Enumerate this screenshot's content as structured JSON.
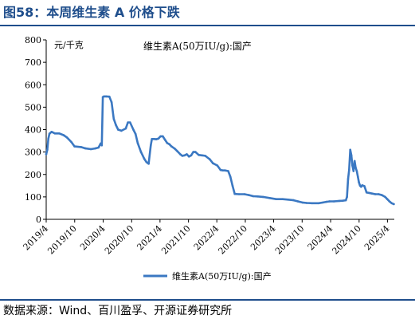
{
  "figure": {
    "title": "图58：本周维生素 A 价格下跌",
    "source": "数据来源：Wind、百川盈孚、开源证券研究所"
  },
  "colors": {
    "accent": "#1f4e8c",
    "series": "#3b78c2"
  },
  "chart_data": {
    "type": "line",
    "title": "",
    "annotation": "维生素A(50万IU/g):国产",
    "unit_label": "元/千克",
    "xlabel": "",
    "ylabel": "",
    "ylim": [
      0,
      800
    ],
    "yticks": [
      0,
      100,
      200,
      300,
      400,
      500,
      600,
      700,
      800
    ],
    "xlim": [
      "2019-04-01",
      "2025-05-15"
    ],
    "xticks": [
      "2019/4",
      "2019/10",
      "2020/4",
      "2020/10",
      "2021/4",
      "2021/10",
      "2022/4",
      "2022/10",
      "2023/4",
      "2023/10",
      "2024/4",
      "2024/10",
      "2025/4"
    ],
    "grid": false,
    "legend": "bottom",
    "series": [
      {
        "name": "维生素A(50万IU/g):国产",
        "points": [
          [
            "2019-04-01",
            290
          ],
          [
            "2019-04-08",
            310
          ],
          [
            "2019-04-15",
            360
          ],
          [
            "2019-04-22",
            382
          ],
          [
            "2019-05-06",
            390
          ],
          [
            "2019-05-27",
            383
          ],
          [
            "2019-06-24",
            383
          ],
          [
            "2019-07-22",
            375
          ],
          [
            "2019-08-12",
            365
          ],
          [
            "2019-09-09",
            345
          ],
          [
            "2019-09-30",
            325
          ],
          [
            "2019-11-11",
            322
          ],
          [
            "2019-12-09",
            316
          ],
          [
            "2020-01-13",
            313
          ],
          [
            "2020-02-10",
            316
          ],
          [
            "2020-03-02",
            320
          ],
          [
            "2020-03-16",
            338
          ],
          [
            "2020-03-23",
            330
          ],
          [
            "2020-03-30",
            545
          ],
          [
            "2020-04-06",
            548
          ],
          [
            "2020-04-20",
            548
          ],
          [
            "2020-05-11",
            547
          ],
          [
            "2020-05-25",
            522
          ],
          [
            "2020-06-08",
            448
          ],
          [
            "2020-06-22",
            420
          ],
          [
            "2020-07-06",
            400
          ],
          [
            "2020-07-27",
            395
          ],
          [
            "2020-08-24",
            405
          ],
          [
            "2020-09-07",
            432
          ],
          [
            "2020-09-21",
            432
          ],
          [
            "2020-10-12",
            400
          ],
          [
            "2020-10-26",
            380
          ],
          [
            "2020-11-09",
            340
          ],
          [
            "2020-11-30",
            300
          ],
          [
            "2020-12-21",
            270
          ],
          [
            "2021-01-04",
            255
          ],
          [
            "2021-01-18",
            248
          ],
          [
            "2021-02-01",
            330
          ],
          [
            "2021-02-08",
            358
          ],
          [
            "2021-02-22",
            358
          ],
          [
            "2021-03-08",
            357
          ],
          [
            "2021-03-22",
            360
          ],
          [
            "2021-04-05",
            370
          ],
          [
            "2021-04-19",
            370
          ],
          [
            "2021-05-03",
            355
          ],
          [
            "2021-05-17",
            340
          ],
          [
            "2021-05-31",
            335
          ],
          [
            "2021-06-14",
            325
          ],
          [
            "2021-07-05",
            315
          ],
          [
            "2021-07-19",
            305
          ],
          [
            "2021-08-09",
            290
          ],
          [
            "2021-08-23",
            283
          ],
          [
            "2021-09-06",
            285
          ],
          [
            "2021-09-20",
            290
          ],
          [
            "2021-10-04",
            280
          ],
          [
            "2021-10-18",
            285
          ],
          [
            "2021-11-01",
            300
          ],
          [
            "2021-11-15",
            300
          ],
          [
            "2021-12-06",
            287
          ],
          [
            "2021-12-27",
            285
          ],
          [
            "2022-01-17",
            283
          ],
          [
            "2022-02-14",
            268
          ],
          [
            "2022-03-07",
            250
          ],
          [
            "2022-04-04",
            240
          ],
          [
            "2022-04-25",
            220
          ],
          [
            "2022-05-09",
            218
          ],
          [
            "2022-05-23",
            218
          ],
          [
            "2022-06-13",
            215
          ],
          [
            "2022-06-27",
            190
          ],
          [
            "2022-07-11",
            150
          ],
          [
            "2022-07-25",
            113
          ],
          [
            "2022-08-22",
            112
          ],
          [
            "2022-09-26",
            112
          ],
          [
            "2022-10-24",
            108
          ],
          [
            "2022-11-21",
            103
          ],
          [
            "2022-12-19",
            102
          ],
          [
            "2023-01-23",
            100
          ],
          [
            "2023-03-06",
            95
          ],
          [
            "2023-04-17",
            90
          ],
          [
            "2023-05-29",
            90
          ],
          [
            "2023-07-03",
            88
          ],
          [
            "2023-08-07",
            85
          ],
          [
            "2023-09-04",
            80
          ],
          [
            "2023-10-02",
            75
          ],
          [
            "2023-10-30",
            73
          ],
          [
            "2023-12-04",
            72
          ],
          [
            "2024-01-15",
            72
          ],
          [
            "2024-02-12",
            75
          ],
          [
            "2024-03-04",
            78
          ],
          [
            "2024-03-25",
            80
          ],
          [
            "2024-04-22",
            80
          ],
          [
            "2024-05-27",
            82
          ],
          [
            "2024-06-17",
            83
          ],
          [
            "2024-07-08",
            85
          ],
          [
            "2024-07-15",
            100
          ],
          [
            "2024-07-22",
            180
          ],
          [
            "2024-07-29",
            220
          ],
          [
            "2024-08-05",
            310
          ],
          [
            "2024-08-12",
            285
          ],
          [
            "2024-08-19",
            240
          ],
          [
            "2024-08-26",
            215
          ],
          [
            "2024-09-02",
            260
          ],
          [
            "2024-09-09",
            230
          ],
          [
            "2024-09-16",
            215
          ],
          [
            "2024-09-23",
            190
          ],
          [
            "2024-09-30",
            165
          ],
          [
            "2024-10-07",
            150
          ],
          [
            "2024-10-14",
            145
          ],
          [
            "2024-10-21",
            152
          ],
          [
            "2024-11-04",
            148
          ],
          [
            "2024-11-18",
            120
          ],
          [
            "2024-12-02",
            118
          ],
          [
            "2024-12-23",
            115
          ],
          [
            "2025-01-13",
            112
          ],
          [
            "2025-02-03",
            112
          ],
          [
            "2025-02-24",
            108
          ],
          [
            "2025-03-17",
            100
          ],
          [
            "2025-03-31",
            90
          ],
          [
            "2025-04-14",
            80
          ],
          [
            "2025-04-28",
            72
          ],
          [
            "2025-05-12",
            68
          ]
        ]
      }
    ]
  }
}
